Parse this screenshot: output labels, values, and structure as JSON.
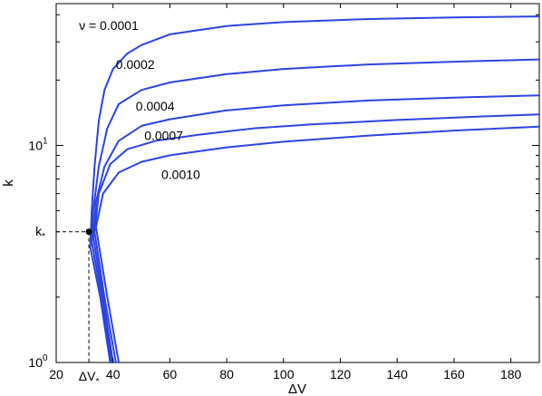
{
  "chart_data": {
    "type": "line",
    "title": "",
    "xlabel": "ΔV",
    "ylabel": "k",
    "xlim": [
      20,
      190
    ],
    "ylim": [
      1,
      45
    ],
    "y_scale": "log",
    "grid": false,
    "line_color": "#2b44e0",
    "x_ticks": [
      {
        "value": 20,
        "label": "20"
      },
      {
        "value": 40,
        "label": "40"
      },
      {
        "value": 60,
        "label": "60"
      },
      {
        "value": 80,
        "label": "80"
      },
      {
        "value": 100,
        "label": "100"
      },
      {
        "value": 120,
        "label": "120"
      },
      {
        "value": 140,
        "label": "140"
      },
      {
        "value": 160,
        "label": "160"
      },
      {
        "value": 180,
        "label": "180"
      }
    ],
    "y_ticks": [
      {
        "value": 1,
        "base": "10",
        "exp": "0"
      },
      {
        "value": 10,
        "base": "10",
        "exp": "1"
      }
    ],
    "series": [
      {
        "label": "ν = 0.0001",
        "label_at": [
          28,
          34
        ],
        "points": [
          [
            39,
            1
          ],
          [
            35.5,
            2
          ],
          [
            32,
            3.4
          ],
          [
            32.5,
            5
          ],
          [
            33.5,
            8
          ],
          [
            35,
            13
          ],
          [
            37,
            18
          ],
          [
            40,
            22.5
          ],
          [
            45,
            26.5
          ],
          [
            50,
            29
          ],
          [
            60,
            32.5
          ],
          [
            80,
            35.5
          ],
          [
            100,
            37
          ],
          [
            130,
            38.2
          ],
          [
            160,
            38.9
          ],
          [
            190,
            39.3
          ]
        ]
      },
      {
        "label": "0.0002",
        "label_at": [
          41,
          22.5
        ],
        "points": [
          [
            39.5,
            1
          ],
          [
            36,
            2
          ],
          [
            32.5,
            3.6
          ],
          [
            33,
            5
          ],
          [
            35,
            8
          ],
          [
            38,
            12
          ],
          [
            42,
            15.5
          ],
          [
            50,
            18
          ],
          [
            60,
            19.5
          ],
          [
            80,
            21.3
          ],
          [
            100,
            22.5
          ],
          [
            130,
            23.6
          ],
          [
            160,
            24.3
          ],
          [
            190,
            24.9
          ]
        ]
      },
      {
        "label": "0.0004",
        "label_at": [
          48,
          14.5
        ],
        "points": [
          [
            40,
            1
          ],
          [
            36.5,
            2
          ],
          [
            33,
            3.8
          ],
          [
            34,
            5.5
          ],
          [
            37,
            8
          ],
          [
            42,
            10.5
          ],
          [
            50,
            12.3
          ],
          [
            60,
            13.2
          ],
          [
            80,
            14.5
          ],
          [
            100,
            15.3
          ],
          [
            130,
            16.1
          ],
          [
            160,
            16.6
          ],
          [
            190,
            17
          ]
        ]
      },
      {
        "label": "0.0007",
        "label_at": [
          51,
          10.6
        ],
        "points": [
          [
            41,
            1
          ],
          [
            37,
            2
          ],
          [
            33.5,
            4
          ],
          [
            35,
            6
          ],
          [
            39,
            8.2
          ],
          [
            45,
            9.6
          ],
          [
            55,
            10.5
          ],
          [
            70,
            11.2
          ],
          [
            90,
            12
          ],
          [
            110,
            12.5
          ],
          [
            140,
            13.1
          ],
          [
            170,
            13.6
          ],
          [
            190,
            13.9
          ]
        ]
      },
      {
        "label": "0.0010",
        "label_at": [
          57,
          7.0
        ],
        "points": [
          [
            42,
            1
          ],
          [
            38,
            2
          ],
          [
            34,
            4.2
          ],
          [
            36.5,
            6
          ],
          [
            42,
            7.5
          ],
          [
            50,
            8.4
          ],
          [
            60,
            9
          ],
          [
            80,
            9.8
          ],
          [
            100,
            10.4
          ],
          [
            130,
            11.1
          ],
          [
            160,
            11.7
          ],
          [
            190,
            12.2
          ]
        ]
      }
    ],
    "marker": {
      "x": 31.5,
      "y": 4.0,
      "x_label_base": "ΔV",
      "x_label_sub": "*",
      "y_label_base": "k",
      "y_label_sub": "*"
    }
  }
}
